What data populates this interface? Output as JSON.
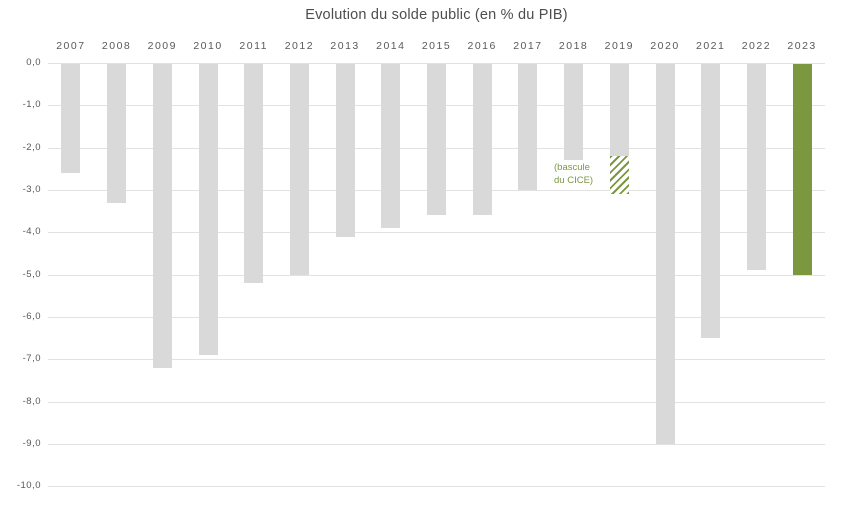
{
  "chart_data": {
    "type": "bar",
    "title": "Evolution du solde public (en % du PIB)",
    "xlabel": "",
    "ylabel": "",
    "categories": [
      "2007",
      "2008",
      "2009",
      "2010",
      "2011",
      "2012",
      "2013",
      "2014",
      "2015",
      "2016",
      "2017",
      "2018",
      "2019",
      "2020",
      "2021",
      "2022",
      "2023"
    ],
    "values": [
      -2.6,
      -3.3,
      -7.2,
      -6.9,
      -5.2,
      -5.0,
      -4.1,
      -3.9,
      -3.6,
      -3.6,
      -3.0,
      -2.3,
      -3.1,
      -9.0,
      -6.5,
      -4.9,
      -5.0
    ],
    "ylim": [
      -10,
      0
    ],
    "ytick_step": 1.0,
    "ytick_labels": [
      "0,0",
      "-1,0",
      "-2,0",
      "-3,0",
      "-4,0",
      "-5,0",
      "-6,0",
      "-7,0",
      "-8,0",
      "-9,0",
      "-10,0"
    ],
    "decimal_style": "comma",
    "grid": true,
    "legend": "none",
    "bar_color_default": "#d9d9d9",
    "gridline_color": "#e2e2e2",
    "highlight": {
      "category": "2023",
      "color": "#7b9841"
    },
    "special_segment": {
      "category": "2019",
      "solid_value": -2.2,
      "total_value": -3.1,
      "pattern": "diagonal-hatch",
      "pattern_color": "#7b9841",
      "annotation_lines": [
        "(bascule",
        "du CICE)"
      ]
    }
  }
}
